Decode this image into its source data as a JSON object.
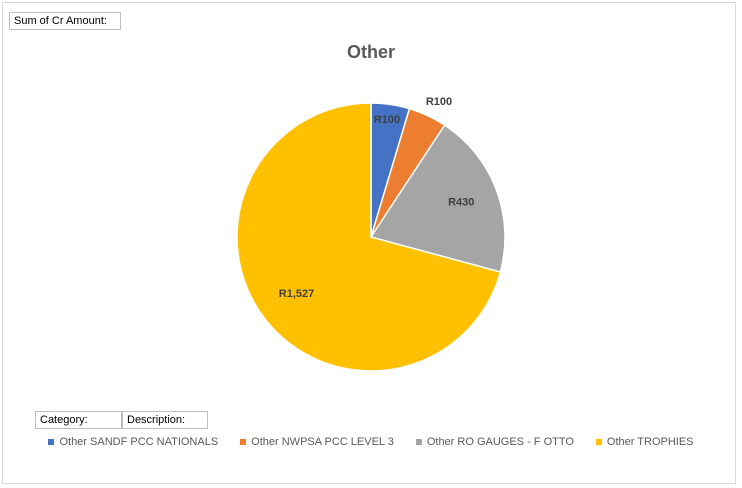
{
  "pivot": {
    "value_field": "Sum of Cr Amount:",
    "category_field": "Category:",
    "description_field": "Description:"
  },
  "chart_data": {
    "type": "pie",
    "title": "Other",
    "categories": [
      "Other SANDF PCC NATIONALS",
      "Other NWPSA PCC LEVEL 3",
      "Other RO GAUGES - F OTTO",
      "Other TROPHIES"
    ],
    "values": [
      100,
      100,
      430,
      1527
    ],
    "data_labels": [
      "R100",
      "R100",
      "R430",
      "R1,527"
    ],
    "colors": [
      "#4472c4",
      "#ed7d31",
      "#a5a5a5",
      "#ffc000"
    ],
    "legend_position": "bottom"
  }
}
